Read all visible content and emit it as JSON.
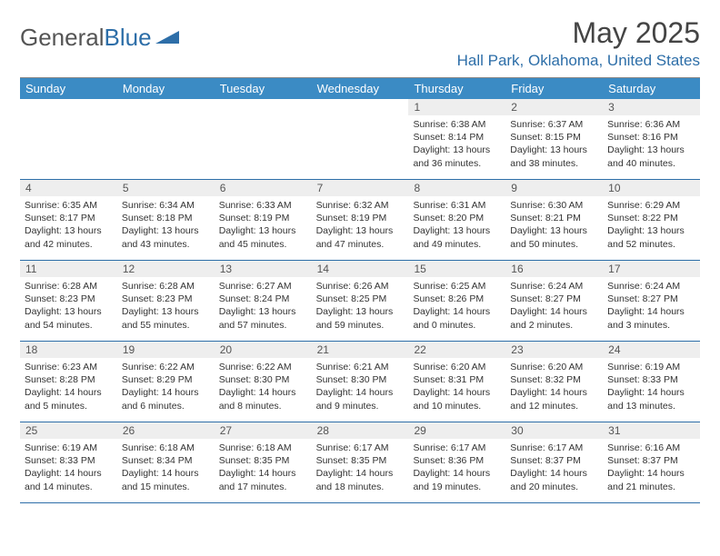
{
  "logo": {
    "text1": "General",
    "text2": "Blue"
  },
  "title": "May 2025",
  "location": "Hall Park, Oklahoma, United States",
  "colors": {
    "header_bg": "#3b8bc4",
    "header_text": "#ffffff",
    "accent": "#2d6ea8",
    "daynum_bg": "#eeeeee",
    "text": "#333333",
    "border_top": "#888888"
  },
  "weekdays": [
    "Sunday",
    "Monday",
    "Tuesday",
    "Wednesday",
    "Thursday",
    "Friday",
    "Saturday"
  ],
  "weeks": [
    [
      {
        "n": "",
        "lines": []
      },
      {
        "n": "",
        "lines": []
      },
      {
        "n": "",
        "lines": []
      },
      {
        "n": "",
        "lines": []
      },
      {
        "n": "1",
        "lines": [
          "Sunrise: 6:38 AM",
          "Sunset: 8:14 PM",
          "Daylight: 13 hours",
          "and 36 minutes."
        ]
      },
      {
        "n": "2",
        "lines": [
          "Sunrise: 6:37 AM",
          "Sunset: 8:15 PM",
          "Daylight: 13 hours",
          "and 38 minutes."
        ]
      },
      {
        "n": "3",
        "lines": [
          "Sunrise: 6:36 AM",
          "Sunset: 8:16 PM",
          "Daylight: 13 hours",
          "and 40 minutes."
        ]
      }
    ],
    [
      {
        "n": "4",
        "lines": [
          "Sunrise: 6:35 AM",
          "Sunset: 8:17 PM",
          "Daylight: 13 hours",
          "and 42 minutes."
        ]
      },
      {
        "n": "5",
        "lines": [
          "Sunrise: 6:34 AM",
          "Sunset: 8:18 PM",
          "Daylight: 13 hours",
          "and 43 minutes."
        ]
      },
      {
        "n": "6",
        "lines": [
          "Sunrise: 6:33 AM",
          "Sunset: 8:19 PM",
          "Daylight: 13 hours",
          "and 45 minutes."
        ]
      },
      {
        "n": "7",
        "lines": [
          "Sunrise: 6:32 AM",
          "Sunset: 8:19 PM",
          "Daylight: 13 hours",
          "and 47 minutes."
        ]
      },
      {
        "n": "8",
        "lines": [
          "Sunrise: 6:31 AM",
          "Sunset: 8:20 PM",
          "Daylight: 13 hours",
          "and 49 minutes."
        ]
      },
      {
        "n": "9",
        "lines": [
          "Sunrise: 6:30 AM",
          "Sunset: 8:21 PM",
          "Daylight: 13 hours",
          "and 50 minutes."
        ]
      },
      {
        "n": "10",
        "lines": [
          "Sunrise: 6:29 AM",
          "Sunset: 8:22 PM",
          "Daylight: 13 hours",
          "and 52 minutes."
        ]
      }
    ],
    [
      {
        "n": "11",
        "lines": [
          "Sunrise: 6:28 AM",
          "Sunset: 8:23 PM",
          "Daylight: 13 hours",
          "and 54 minutes."
        ]
      },
      {
        "n": "12",
        "lines": [
          "Sunrise: 6:28 AM",
          "Sunset: 8:23 PM",
          "Daylight: 13 hours",
          "and 55 minutes."
        ]
      },
      {
        "n": "13",
        "lines": [
          "Sunrise: 6:27 AM",
          "Sunset: 8:24 PM",
          "Daylight: 13 hours",
          "and 57 minutes."
        ]
      },
      {
        "n": "14",
        "lines": [
          "Sunrise: 6:26 AM",
          "Sunset: 8:25 PM",
          "Daylight: 13 hours",
          "and 59 minutes."
        ]
      },
      {
        "n": "15",
        "lines": [
          "Sunrise: 6:25 AM",
          "Sunset: 8:26 PM",
          "Daylight: 14 hours",
          "and 0 minutes."
        ]
      },
      {
        "n": "16",
        "lines": [
          "Sunrise: 6:24 AM",
          "Sunset: 8:27 PM",
          "Daylight: 14 hours",
          "and 2 minutes."
        ]
      },
      {
        "n": "17",
        "lines": [
          "Sunrise: 6:24 AM",
          "Sunset: 8:27 PM",
          "Daylight: 14 hours",
          "and 3 minutes."
        ]
      }
    ],
    [
      {
        "n": "18",
        "lines": [
          "Sunrise: 6:23 AM",
          "Sunset: 8:28 PM",
          "Daylight: 14 hours",
          "and 5 minutes."
        ]
      },
      {
        "n": "19",
        "lines": [
          "Sunrise: 6:22 AM",
          "Sunset: 8:29 PM",
          "Daylight: 14 hours",
          "and 6 minutes."
        ]
      },
      {
        "n": "20",
        "lines": [
          "Sunrise: 6:22 AM",
          "Sunset: 8:30 PM",
          "Daylight: 14 hours",
          "and 8 minutes."
        ]
      },
      {
        "n": "21",
        "lines": [
          "Sunrise: 6:21 AM",
          "Sunset: 8:30 PM",
          "Daylight: 14 hours",
          "and 9 minutes."
        ]
      },
      {
        "n": "22",
        "lines": [
          "Sunrise: 6:20 AM",
          "Sunset: 8:31 PM",
          "Daylight: 14 hours",
          "and 10 minutes."
        ]
      },
      {
        "n": "23",
        "lines": [
          "Sunrise: 6:20 AM",
          "Sunset: 8:32 PM",
          "Daylight: 14 hours",
          "and 12 minutes."
        ]
      },
      {
        "n": "24",
        "lines": [
          "Sunrise: 6:19 AM",
          "Sunset: 8:33 PM",
          "Daylight: 14 hours",
          "and 13 minutes."
        ]
      }
    ],
    [
      {
        "n": "25",
        "lines": [
          "Sunrise: 6:19 AM",
          "Sunset: 8:33 PM",
          "Daylight: 14 hours",
          "and 14 minutes."
        ]
      },
      {
        "n": "26",
        "lines": [
          "Sunrise: 6:18 AM",
          "Sunset: 8:34 PM",
          "Daylight: 14 hours",
          "and 15 minutes."
        ]
      },
      {
        "n": "27",
        "lines": [
          "Sunrise: 6:18 AM",
          "Sunset: 8:35 PM",
          "Daylight: 14 hours",
          "and 17 minutes."
        ]
      },
      {
        "n": "28",
        "lines": [
          "Sunrise: 6:17 AM",
          "Sunset: 8:35 PM",
          "Daylight: 14 hours",
          "and 18 minutes."
        ]
      },
      {
        "n": "29",
        "lines": [
          "Sunrise: 6:17 AM",
          "Sunset: 8:36 PM",
          "Daylight: 14 hours",
          "and 19 minutes."
        ]
      },
      {
        "n": "30",
        "lines": [
          "Sunrise: 6:17 AM",
          "Sunset: 8:37 PM",
          "Daylight: 14 hours",
          "and 20 minutes."
        ]
      },
      {
        "n": "31",
        "lines": [
          "Sunrise: 6:16 AM",
          "Sunset: 8:37 PM",
          "Daylight: 14 hours",
          "and 21 minutes."
        ]
      }
    ]
  ]
}
